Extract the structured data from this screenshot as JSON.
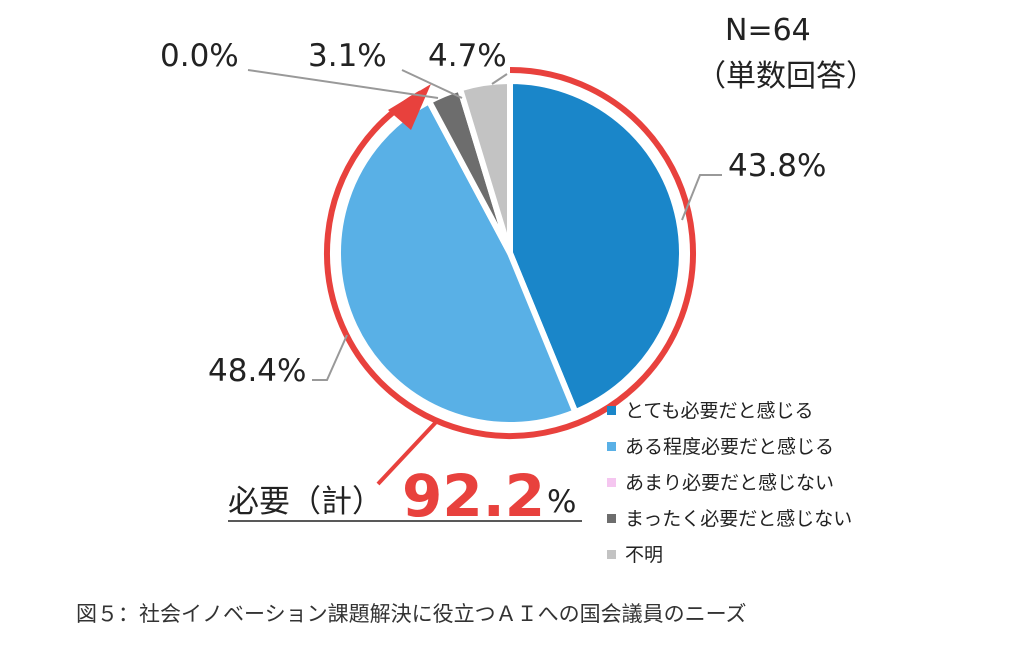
{
  "chart_data": {
    "type": "pie",
    "n_label": "N=64",
    "n_sub": "（単数回答）",
    "slices": [
      {
        "label": "とても必要だと感じる",
        "value": 43.8,
        "value_label": "43.8%",
        "color": "#1a86c9"
      },
      {
        "label": "ある程度必要だと感じる",
        "value": 48.4,
        "value_label": "48.4%",
        "color": "#59b0e6"
      },
      {
        "label": "あまり必要だと感じない",
        "value": 0.0,
        "value_label": "0.0%",
        "color": "#f5c6f0"
      },
      {
        "label": "まったく必要だと感じない",
        "value": 3.1,
        "value_label": "3.1%",
        "color": "#6d6d6d"
      },
      {
        "label": "不明",
        "value": 4.7,
        "value_label": "4.7%",
        "color": "#c3c3c3"
      }
    ],
    "total_label": "必要（計）",
    "total_value": "92.2",
    "total_unit": "%",
    "highlight_color": "#e8413d"
  },
  "caption": "図５：社会イノベーション課題解決に役立つＡＩへの国会議員のニーズ"
}
